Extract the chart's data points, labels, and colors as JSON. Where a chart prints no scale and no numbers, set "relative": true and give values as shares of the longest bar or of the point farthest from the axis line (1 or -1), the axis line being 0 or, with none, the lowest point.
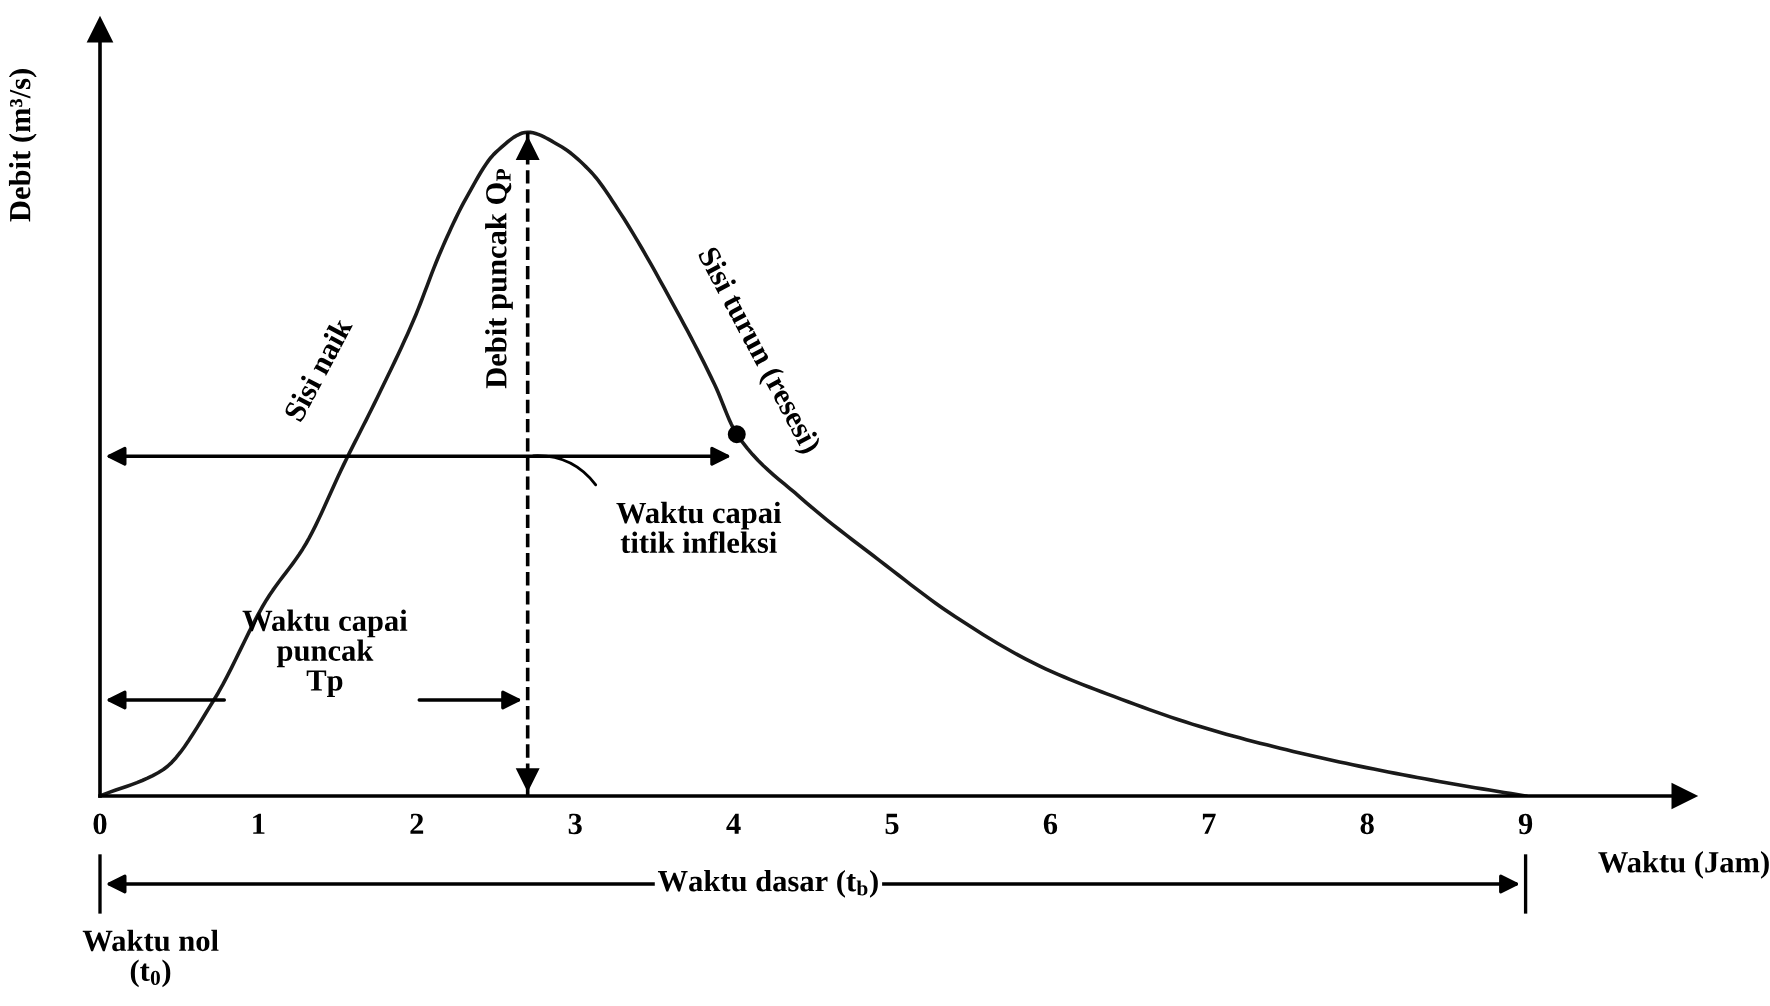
{
  "chart_data": {
    "type": "line",
    "relative": true,
    "x": [
      0,
      0.4,
      0.72,
      1.05,
      1.3,
      1.54,
      1.75,
      1.98,
      2.15,
      2.31,
      2.5,
      2.7,
      2.9,
      3.1,
      3.28,
      3.62,
      3.88,
      4.02,
      4.42,
      4.92,
      5.4,
      5.93,
      6.4,
      6.94,
      7.45,
      7.95,
      8.5,
      9
    ],
    "series": [
      {
        "color": "#1a1a1a",
        "values": [
          0,
          0.04,
          0.145,
          0.295,
          0.38,
          0.5,
          0.6,
          0.717,
          0.82,
          0.9,
          0.97,
          1,
          0.98,
          0.94,
          0.88,
          0.74,
          0.62,
          0.545,
          0.45,
          0.355,
          0.27,
          0.196,
          0.15,
          0.105,
          0.072,
          0.045,
          0.02,
          0
        ]
      },
      {
        "type": "scatter",
        "x": [
          4.02
        ],
        "values": [
          0.545
        ],
        "color": "#000000"
      }
    ],
    "xlabel": "Waktu (Jam)",
    "ylabel": "Debit (m³/s)",
    "xlim": [
      0,
      10
    ],
    "xticks": [
      0,
      1,
      2,
      3,
      4,
      5,
      6,
      7,
      8,
      9
    ],
    "tick_labels": "x",
    "ref_lines": [
      {
        "axis": "x",
        "value": 2.7,
        "label": "Debit puncak Q$_{P}$",
        "line_style": "dashed",
        "color": "#000000"
      }
    ],
    "annotations": [
      "Sisi naik",
      "Sisi turun (resesi)",
      "Waktu capai\ntitik infleksi",
      "Waktu capai\npuncak\nTp",
      "Waktu dasar (t$_{b}$)",
      "Waktu nol\n(t$_{0}$)"
    ]
  }
}
